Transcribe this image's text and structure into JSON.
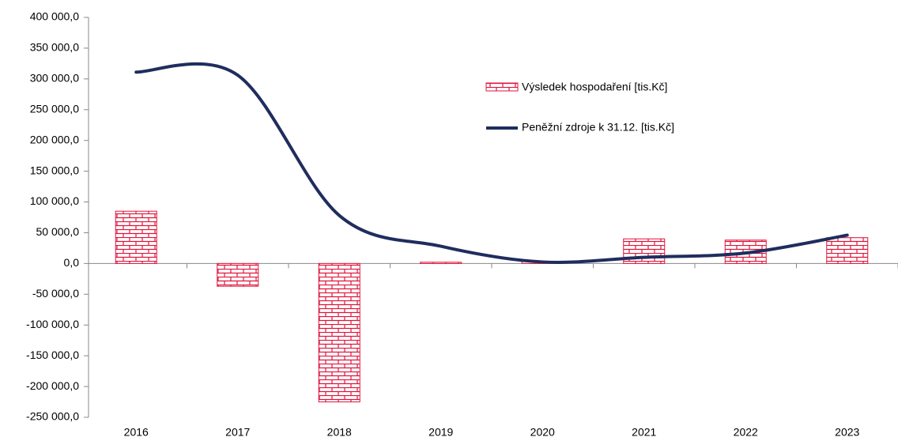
{
  "chart_data": {
    "type": "bar-line",
    "categories": [
      "2016",
      "2017",
      "2018",
      "2019",
      "2020",
      "2021",
      "2022",
      "2023"
    ],
    "series": [
      {
        "name": "Výsledek hospodaření [tis.Kč]",
        "type": "bar",
        "color": "#e0143c",
        "values": [
          85000,
          -37000,
          -225000,
          2000,
          3000,
          40000,
          38000,
          42000
        ]
      },
      {
        "name": "Peněžní zdroje k 31.12. [tis.Kč]",
        "type": "line",
        "color": "#1f2d5e",
        "values": [
          311000,
          306000,
          78000,
          28000,
          2500,
          10000,
          17000,
          46000
        ]
      }
    ],
    "ylim": [
      -250000,
      400000
    ],
    "yticks": [
      {
        "value": -250000,
        "label": "-250 000,0"
      },
      {
        "value": -200000,
        "label": "-200 000,0"
      },
      {
        "value": -150000,
        "label": "-150 000,0"
      },
      {
        "value": -100000,
        "label": "-100 000,0"
      },
      {
        "value": -50000,
        "label": "-50 000,0"
      },
      {
        "value": 0,
        "label": "0,0"
      },
      {
        "value": 50000,
        "label": "50 000,0"
      },
      {
        "value": 100000,
        "label": "100 000,0"
      },
      {
        "value": 150000,
        "label": "150 000,0"
      },
      {
        "value": 200000,
        "label": "200 000,0"
      },
      {
        "value": 250000,
        "label": "250 000,0"
      },
      {
        "value": 300000,
        "label": "300 000,0"
      },
      {
        "value": 350000,
        "label": "350 000,0"
      },
      {
        "value": 400000,
        "label": "400 000,0"
      }
    ],
    "grid": false
  }
}
